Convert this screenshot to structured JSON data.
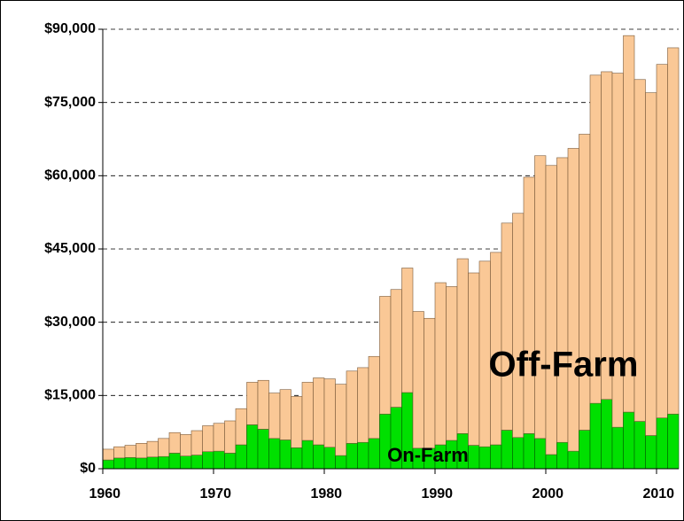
{
  "chart_data": {
    "type": "stacked_bar",
    "categories": [
      "1960",
      null,
      null,
      null,
      null,
      null,
      null,
      null,
      null,
      null,
      "1970",
      null,
      null,
      null,
      null,
      null,
      null,
      null,
      null,
      null,
      "1980",
      null,
      null,
      null,
      null,
      null,
      null,
      null,
      null,
      null,
      "1990",
      null,
      null,
      null,
      null,
      null,
      null,
      null,
      null,
      null,
      "2000",
      null,
      null,
      null,
      null,
      null,
      null,
      null,
      null,
      null,
      "2010",
      null
    ],
    "series": [
      {
        "name": "On-Farm",
        "color": "#00e000",
        "values": [
          1800,
          2200,
          2300,
          2200,
          2400,
          2500,
          3200,
          2600,
          2800,
          3500,
          3600,
          3200,
          4900,
          9000,
          8100,
          6200,
          5900,
          4300,
          5800,
          4900,
          4400,
          2700,
          5200,
          5400,
          6200,
          11200,
          12600,
          15600,
          4200,
          4200,
          4900,
          5800,
          7200,
          4800,
          4500,
          4900,
          7900,
          6400,
          7200,
          6200,
          2900,
          5400,
          3600,
          7900,
          13400,
          14200,
          8500,
          11600,
          9700,
          6800,
          10400,
          11200
        ]
      },
      {
        "name": "Off-Farm",
        "color": "#fac896",
        "values": [
          2200,
          2300,
          2500,
          3000,
          3200,
          3700,
          4200,
          4400,
          5000,
          5300,
          5700,
          6600,
          7400,
          8700,
          10000,
          9300,
          10300,
          10500,
          11900,
          13700,
          14000,
          14600,
          14800,
          15300,
          16800,
          24100,
          24100,
          25500,
          28000,
          26600,
          33200,
          31500,
          35800,
          35300,
          38000,
          39400,
          42400,
          45900,
          52500,
          57900,
          59200,
          58300,
          62000,
          60600,
          67200,
          67100,
          72500,
          77100,
          70000,
          70200,
          72400,
          75000
        ]
      }
    ],
    "ylim": [
      0,
      90000
    ],
    "yticks": [
      {
        "value": 0,
        "label": "$0"
      },
      {
        "value": 15000,
        "label": "$15,000"
      },
      {
        "value": 30000,
        "label": "$30,000"
      },
      {
        "value": 45000,
        "label": "$45,000"
      },
      {
        "value": 60000,
        "label": "$60,000"
      },
      {
        "value": 75000,
        "label": "$75,000"
      },
      {
        "value": 90000,
        "label": "$90,000"
      }
    ],
    "grid": true
  }
}
